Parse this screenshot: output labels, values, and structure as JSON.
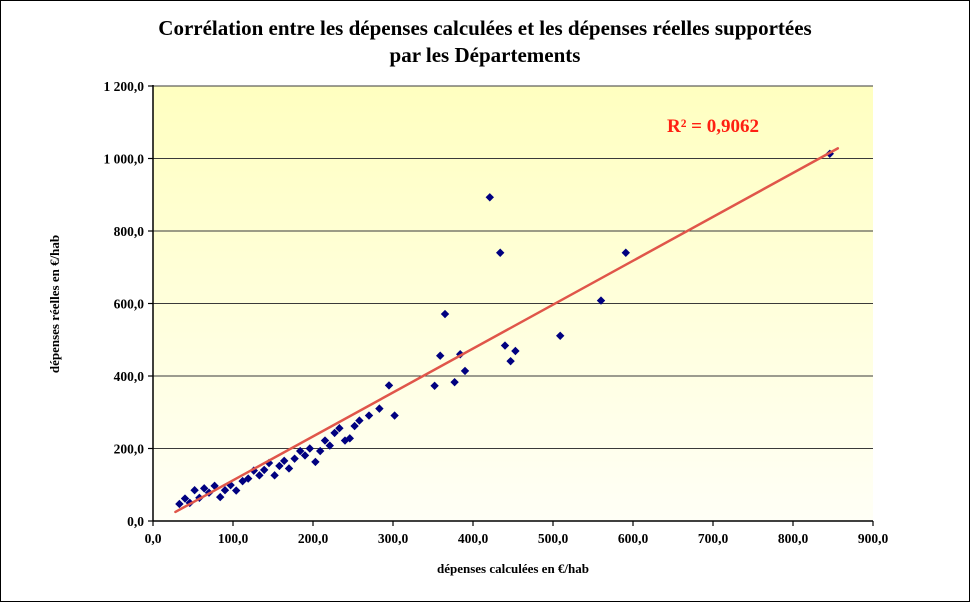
{
  "chart_data": {
    "type": "scatter",
    "title": "Corrélation entre les dépenses calculées et les dépenses réelles supportées par les Départements",
    "title_lines": [
      "Corrélation entre les dépenses calculées et les dépenses réelles supportées",
      "par les Départements"
    ],
    "xlabel": "dépenses calculées  en €/hab",
    "ylabel": "dépenses réelles  en €/hab",
    "annotation": "R² = 0,9062",
    "xlim": [
      0,
      900
    ],
    "ylim": [
      0,
      1200
    ],
    "x_ticks": [
      "0,0",
      "100,0",
      "200,0",
      "300,0",
      "400,0",
      "500,0",
      "600,0",
      "700,0",
      "800,0",
      "900,0"
    ],
    "y_ticks": [
      "0,0",
      "200,0",
      "400,0",
      "600,0",
      "800,0",
      "1 000,0",
      "1 200,0"
    ],
    "grid": "horizontal",
    "legend": "none",
    "colors": {
      "marker": "#000080",
      "trendline": "#e0564a",
      "annotation": "#ff2012",
      "plot_bg_top": "#ffffc0",
      "plot_bg_bottom": "#fffff6",
      "axis": "#000000",
      "gridline": "#3a3a3a"
    },
    "trendline": {
      "type": "linear",
      "x": [
        28,
        856
      ],
      "y": [
        25,
        1028
      ],
      "r_squared": 0.9062
    },
    "points": [
      [
        33,
        47
      ],
      [
        40,
        62
      ],
      [
        46,
        50
      ],
      [
        52,
        85
      ],
      [
        58,
        64
      ],
      [
        64,
        90
      ],
      [
        70,
        78
      ],
      [
        77,
        97
      ],
      [
        84,
        66
      ],
      [
        90,
        85
      ],
      [
        97,
        99
      ],
      [
        104,
        84
      ],
      [
        112,
        110
      ],
      [
        119,
        117
      ],
      [
        126,
        139
      ],
      [
        133,
        126
      ],
      [
        139,
        141
      ],
      [
        145,
        160
      ],
      [
        152,
        126
      ],
      [
        158,
        152
      ],
      [
        164,
        166
      ],
      [
        170,
        145
      ],
      [
        177,
        172
      ],
      [
        184,
        193
      ],
      [
        190,
        181
      ],
      [
        196,
        200
      ],
      [
        203,
        163
      ],
      [
        209,
        193
      ],
      [
        215,
        222
      ],
      [
        221,
        208
      ],
      [
        227,
        243
      ],
      [
        233,
        256
      ],
      [
        240,
        222
      ],
      [
        246,
        228
      ],
      [
        252,
        262
      ],
      [
        258,
        277
      ],
      [
        270,
        291
      ],
      [
        283,
        310
      ],
      [
        295,
        374
      ],
      [
        302,
        291
      ],
      [
        352,
        373
      ],
      [
        359,
        456
      ],
      [
        365,
        571
      ],
      [
        377,
        383
      ],
      [
        384,
        460
      ],
      [
        390,
        414
      ],
      [
        421,
        893
      ],
      [
        434,
        740
      ],
      [
        440,
        484
      ],
      [
        447,
        441
      ],
      [
        453,
        469
      ],
      [
        509,
        511
      ],
      [
        560,
        608
      ],
      [
        591,
        740
      ],
      [
        846,
        1013
      ]
    ]
  }
}
